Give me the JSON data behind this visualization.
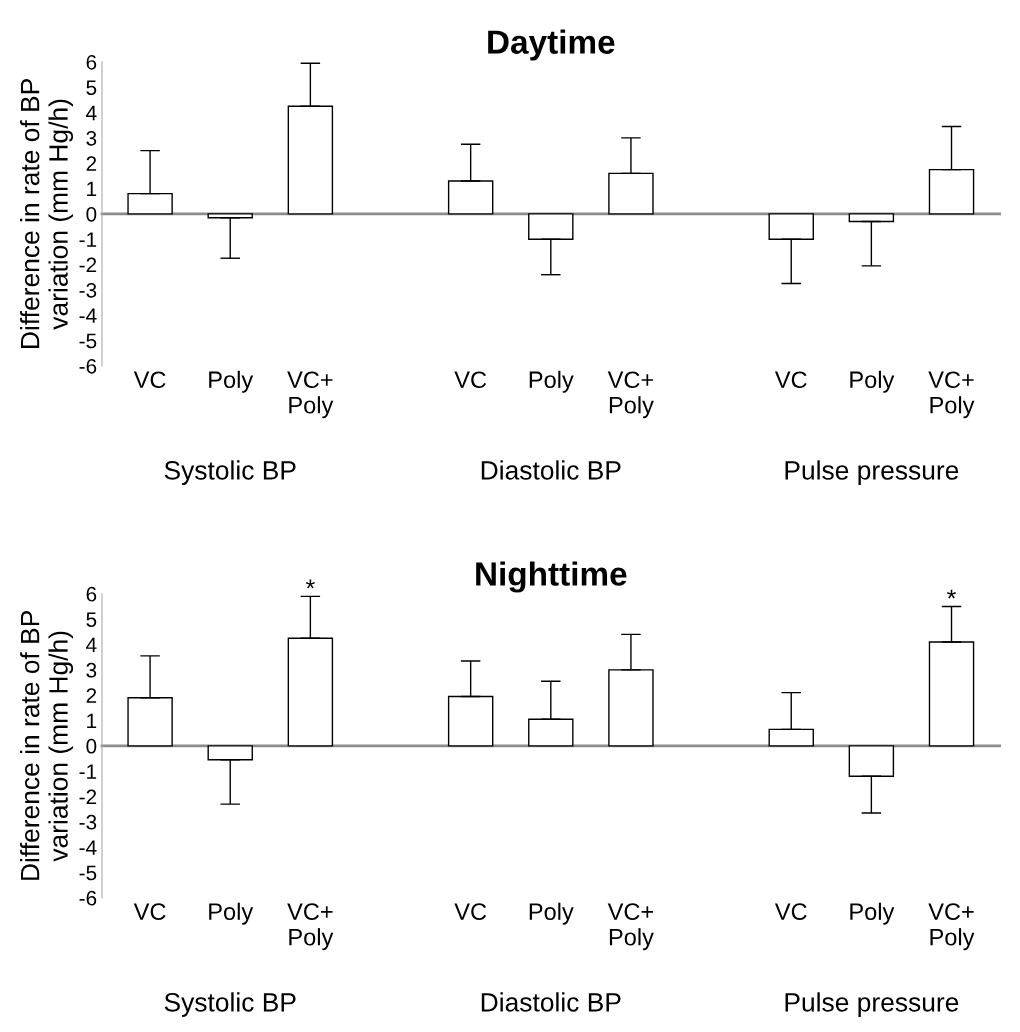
{
  "chart_data": [
    {
      "type": "bar",
      "title": "Daytime",
      "ylabel": "Difference in rate of BP\nvariation (mm Hg/h)",
      "categories": [
        "VC",
        "Poly",
        "VC+\nPoly",
        null,
        "VC",
        "Poly",
        "VC+\nPoly",
        null,
        "VC",
        "Poly",
        "VC+\nPoly"
      ],
      "values": [
        0.8,
        -0.15,
        4.25,
        null,
        1.3,
        -1.0,
        1.6,
        null,
        -1.0,
        -0.3,
        1.75
      ],
      "errors": [
        [
          0.8,
          2.5
        ],
        [
          -1.75,
          -0.15
        ],
        [
          4.25,
          5.95
        ],
        null,
        [
          1.3,
          2.75
        ],
        [
          -2.4,
          -1.0
        ],
        [
          1.6,
          3.0
        ],
        null,
        [
          -2.75,
          -1.0
        ],
        [
          -2.05,
          -0.3
        ],
        [
          1.75,
          3.45
        ]
      ],
      "color": "#ffffff",
      "ylim": [
        -6,
        6
      ],
      "yticks": [
        -6,
        -5,
        -4,
        -3,
        -2,
        -1,
        0,
        1,
        2,
        3,
        4,
        5,
        6
      ],
      "legend": false,
      "annotations": [
        "Systolic BP",
        "Diastolic BP",
        "Pulse pressure"
      ]
    },
    {
      "type": "bar",
      "title": "Nighttime",
      "ylabel": "Difference in rate of BP\nvariation (mm Hg/h)",
      "categories": [
        "VC",
        "Poly",
        "VC+\nPoly",
        null,
        "VC",
        "Poly",
        "VC+\nPoly",
        null,
        "VC",
        "Poly",
        "VC+\nPoly"
      ],
      "values": [
        1.9,
        -0.55,
        4.25,
        null,
        1.95,
        1.05,
        3.0,
        null,
        0.65,
        -1.2,
        4.1
      ],
      "errors": [
        [
          1.9,
          3.55
        ],
        [
          -2.3,
          -0.55
        ],
        [
          4.25,
          5.9
        ],
        null,
        [
          1.95,
          3.35
        ],
        [
          1.05,
          2.55
        ],
        [
          3.0,
          4.4
        ],
        null,
        [
          0.65,
          2.1
        ],
        [
          -2.65,
          -1.2
        ],
        [
          4.1,
          5.5
        ]
      ],
      "value_labels": [
        null,
        null,
        "*",
        null,
        null,
        null,
        null,
        null,
        null,
        null,
        "*"
      ],
      "color": "#ffffff",
      "ylim": [
        -6,
        6
      ],
      "yticks": [
        -6,
        -5,
        -4,
        -3,
        -2,
        -1,
        0,
        1,
        2,
        3,
        4,
        5,
        6
      ],
      "legend": false,
      "annotations": [
        "Systolic BP",
        "Diastolic BP",
        "Pulse pressure"
      ]
    }
  ]
}
